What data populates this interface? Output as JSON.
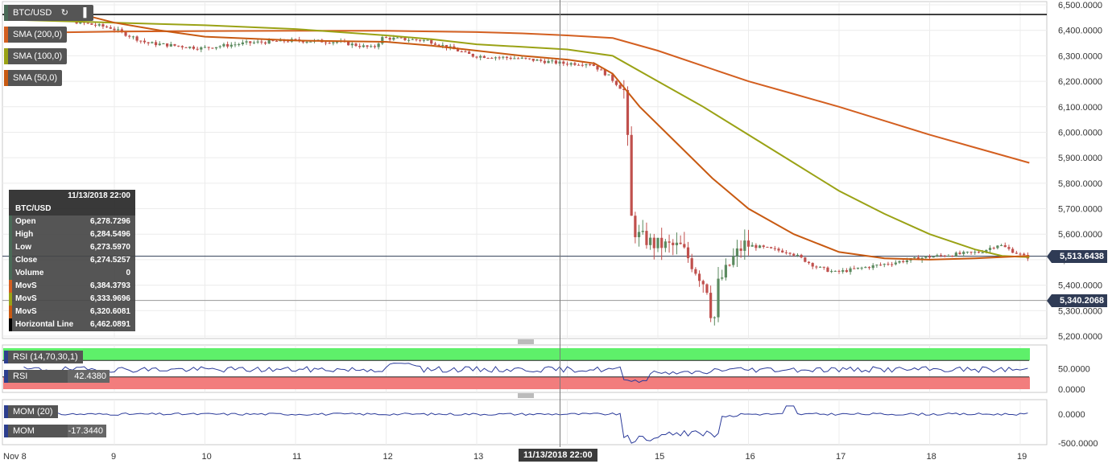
{
  "chart_data": {
    "type": "candlestick",
    "symbol": "BTC/USD",
    "price_axis": {
      "ticks": [
        "6,500.0000",
        "6,400.0000",
        "6,300.0000",
        "6,200.0000",
        "6,100.0000",
        "6,000.0000",
        "5,900.0000",
        "5,800.0000",
        "5,700.0000",
        "5,600.0000",
        "5,500.0000",
        "5,400.0000",
        "5,300.0000",
        "5,200.0000"
      ],
      "range": [
        5180,
        6510
      ]
    },
    "time_axis": {
      "labels": [
        "Nov 8",
        "9",
        "10",
        "11",
        "12",
        "13",
        "14",
        "15",
        "16",
        "17",
        "18",
        "19"
      ],
      "range_days": [
        8,
        19.2
      ]
    },
    "legend": {
      "symbol": "BTC/USD",
      "sma200": "SMA (200,0)",
      "sma100": "SMA (100,0)",
      "sma50": "SMA (50,0)"
    },
    "colors": {
      "up": "#5b8a5f",
      "down": "#c0504d",
      "sma200": "#d35f20",
      "sma100": "#9aa215",
      "sma50": "#c85a12",
      "horizontal": "#000000",
      "rsi": "#2a3a9a",
      "mom": "#2a3a9a",
      "rsi_overbought_zone": "#5ef06a",
      "rsi_oversold_zone": "#f27d7d"
    },
    "infobox": {
      "datetime": "11/13/2018 22:00",
      "symbol": "BTC/USD",
      "rows": [
        {
          "label": "Open",
          "value": "6,278.7296",
          "swatch": "#4a6b57"
        },
        {
          "label": "High",
          "value": "6,284.5496",
          "swatch": "#4a6b57"
        },
        {
          "label": "Low",
          "value": "6,273.5970",
          "swatch": "#4a6b57"
        },
        {
          "label": "Close",
          "value": "6,274.5257",
          "swatch": "#4a6b57"
        },
        {
          "label": "Volume",
          "value": "0",
          "swatch": "#4a6b57"
        },
        {
          "label": "MovS",
          "value": "6,384.3793",
          "swatch": "#d35f20"
        },
        {
          "label": "MovS",
          "value": "6,333.9696",
          "swatch": "#9aa215"
        },
        {
          "label": "MovS",
          "value": "6,320.6081",
          "swatch": "#c85a12"
        },
        {
          "label": "Horizontal Line",
          "value": "6,462.0891",
          "swatch": "#000000"
        }
      ]
    },
    "horizontal_line": 6462.0891,
    "current_price_label": "5,513.6438",
    "current_price": 5513.6438,
    "second_price_label": "5,340.2068",
    "second_price": 5340.2068,
    "crosshair_time_label": "11/13/2018 22:00",
    "crosshair_day": 13.92,
    "sma200": [
      [
        8.0,
        6390
      ],
      [
        9,
        6395
      ],
      [
        10,
        6397
      ],
      [
        11,
        6398
      ],
      [
        12,
        6398
      ],
      [
        13,
        6393
      ],
      [
        13.5,
        6388
      ],
      [
        14,
        6380
      ],
      [
        14.5,
        6370
      ],
      [
        15,
        6320
      ],
      [
        15.5,
        6260
      ],
      [
        16,
        6200
      ],
      [
        16.5,
        6150
      ],
      [
        17,
        6100
      ],
      [
        17.5,
        6045
      ],
      [
        18,
        5990
      ],
      [
        18.5,
        5940
      ],
      [
        19.1,
        5880
      ]
    ],
    "sma100": [
      [
        8.0,
        6440
      ],
      [
        9,
        6430
      ],
      [
        10,
        6420
      ],
      [
        11,
        6405
      ],
      [
        12,
        6380
      ],
      [
        12.5,
        6365
      ],
      [
        13,
        6345
      ],
      [
        13.5,
        6335
      ],
      [
        14,
        6325
      ],
      [
        14.5,
        6300
      ],
      [
        15,
        6200
      ],
      [
        15.5,
        6100
      ],
      [
        16,
        5990
      ],
      [
        16.5,
        5880
      ],
      [
        17,
        5770
      ],
      [
        17.5,
        5680
      ],
      [
        18,
        5600
      ],
      [
        18.5,
        5540
      ],
      [
        18.8,
        5515
      ],
      [
        19.1,
        5510
      ]
    ],
    "sma50": [
      [
        8.0,
        6478
      ],
      [
        8.5,
        6475
      ],
      [
        9,
        6430
      ],
      [
        9.5,
        6400
      ],
      [
        10,
        6375
      ],
      [
        11,
        6360
      ],
      [
        12,
        6355
      ],
      [
        12.5,
        6340
      ],
      [
        13,
        6320
      ],
      [
        13.5,
        6300
      ],
      [
        14,
        6285
      ],
      [
        14.3,
        6270
      ],
      [
        14.5,
        6230
      ],
      [
        14.8,
        6100
      ],
      [
        15.2,
        5960
      ],
      [
        15.6,
        5820
      ],
      [
        16,
        5700
      ],
      [
        16.5,
        5600
      ],
      [
        17,
        5530
      ],
      [
        17.5,
        5505
      ],
      [
        18,
        5500
      ],
      [
        18.5,
        5505
      ],
      [
        19.1,
        5515
      ]
    ],
    "rsi": {
      "label": "RSI (14,70,30,1)",
      "value_label": "RSI",
      "value": "42.4380",
      "ticks": [
        "50.0000",
        "0.0000"
      ],
      "overbought": 70,
      "oversold": 30
    },
    "mom": {
      "label": "MOM (20)",
      "value_label": "MOM",
      "value": "-17.3440",
      "ticks": [
        "0.0000",
        "-500.0000"
      ]
    }
  }
}
